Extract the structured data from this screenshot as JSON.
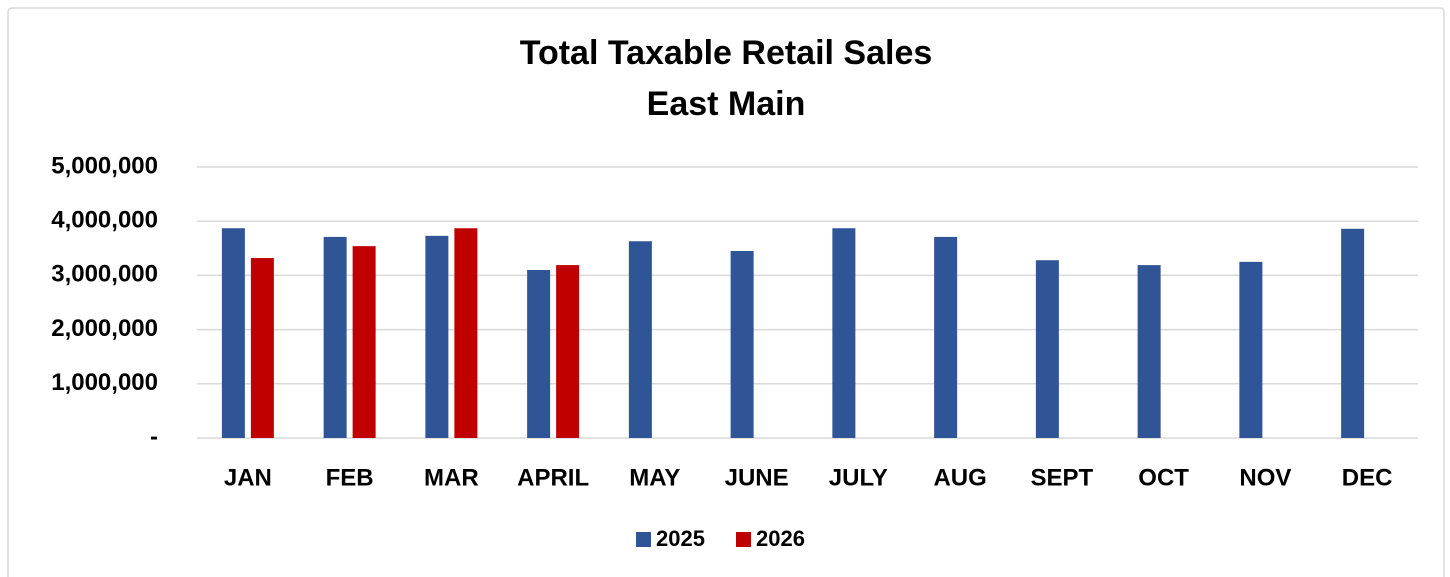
{
  "chart_data": {
    "type": "bar",
    "title": "Total Taxable Retail Sales",
    "subtitle": "East Main",
    "categories": [
      "JAN",
      "FEB",
      "MAR",
      "APRIL",
      "MAY",
      "JUNE",
      "JULY",
      "AUG",
      "SEPT",
      "OCT",
      "NOV",
      "DEC"
    ],
    "series": [
      {
        "name": "2025",
        "color": "#2f5597",
        "values": [
          3870000,
          3710000,
          3730000,
          3100000,
          3630000,
          3450000,
          3870000,
          3710000,
          3280000,
          3190000,
          3250000,
          3860000
        ]
      },
      {
        "name": "2026",
        "color": "#c00000",
        "values": [
          3320000,
          3540000,
          3870000,
          3190000,
          null,
          null,
          null,
          null,
          null,
          null,
          null,
          null
        ]
      }
    ],
    "ylim": [
      0,
      5000000
    ],
    "yticks": [
      {
        "value": 0,
        "label": "-"
      },
      {
        "value": 1000000,
        "label": "1,000,000"
      },
      {
        "value": 2000000,
        "label": "2,000,000"
      },
      {
        "value": 3000000,
        "label": "3,000,000"
      },
      {
        "value": 4000000,
        "label": "4,000,000"
      },
      {
        "value": 5000000,
        "label": "5,000,000"
      }
    ],
    "grid": true,
    "legend": "bottom"
  }
}
